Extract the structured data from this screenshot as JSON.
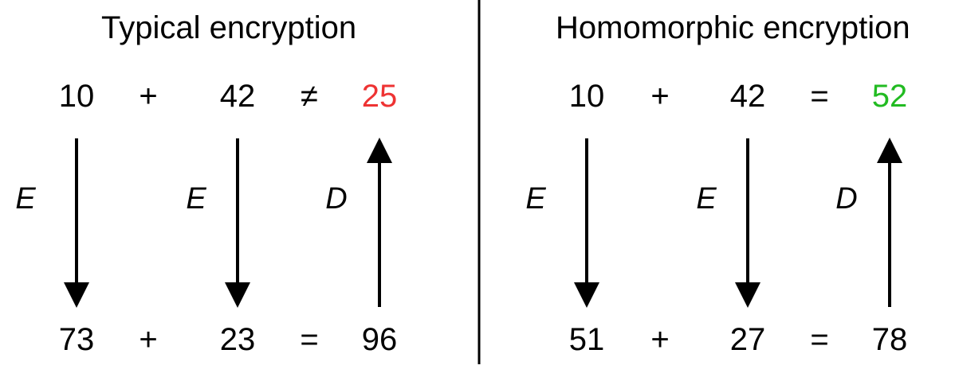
{
  "left": {
    "title": "Typical encryption",
    "top_row": [
      "10",
      "+",
      "42",
      "≠",
      "25"
    ],
    "bottom_row": [
      "73",
      "+",
      "23",
      "=",
      "96"
    ],
    "arrow_labels": [
      "E",
      "E",
      "D"
    ],
    "result_color": "#ee3333"
  },
  "right": {
    "title": "Homomorphic encryption",
    "top_row": [
      "10",
      "+",
      "42",
      "=",
      "52"
    ],
    "bottom_row": [
      "51",
      "+",
      "27",
      "=",
      "78"
    ],
    "arrow_labels": [
      "E",
      "E",
      "D"
    ],
    "result_color": "#22bb22"
  }
}
